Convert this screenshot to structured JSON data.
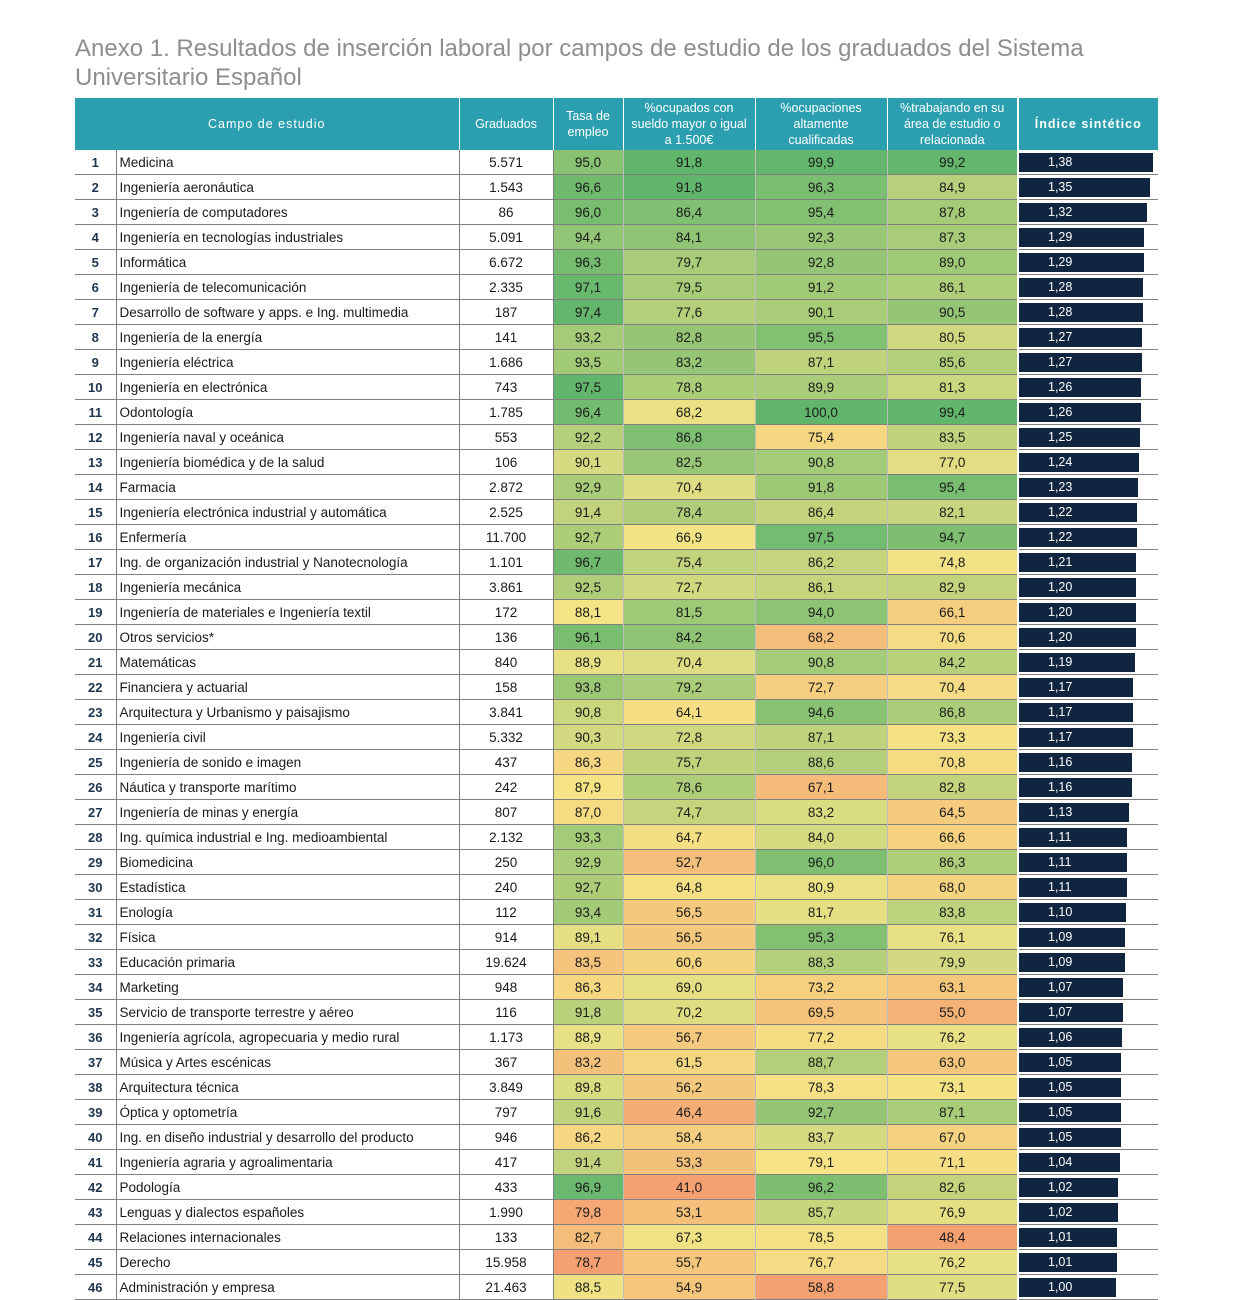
{
  "title": "Anexo 1. Resultados de inserción laboral por campos de estudio de los graduados del Sistema Universitario Español",
  "headers": {
    "campo": "Campo de estudio",
    "graduados": "Graduados",
    "tasa": "Tasa de empleo",
    "sueldo": "%ocupados con sueldo mayor o igual a 1.500€",
    "cualificadas": "%ocupaciones altamente cualificadas",
    "area": "%trabajando en su área de estudio o relacionada",
    "indice": "Índice sintético"
  },
  "scale": {
    "low": "#f4a070",
    "mid": "#f5e486",
    "high": "#62b66c",
    "index_bar": "#10253f"
  },
  "rows": [
    {
      "rank": "1",
      "campo": "Medicina",
      "graduados": "5.571",
      "tasa": "95,0",
      "sueldo": "91,8",
      "cualificadas": "99,9",
      "area": "99,2",
      "indice": "1,38"
    },
    {
      "rank": "2",
      "campo": "Ingeniería aeronáutica",
      "graduados": "1.543",
      "tasa": "96,6",
      "sueldo": "91,8",
      "cualificadas": "96,3",
      "area": "84,9",
      "indice": "1,35"
    },
    {
      "rank": "3",
      "campo": "Ingeniería de computadores",
      "graduados": "86",
      "tasa": "96,0",
      "sueldo": "86,4",
      "cualificadas": "95,4",
      "area": "87,8",
      "indice": "1,32"
    },
    {
      "rank": "4",
      "campo": "Ingeniería en tecnologías industriales",
      "graduados": "5.091",
      "tasa": "94,4",
      "sueldo": "84,1",
      "cualificadas": "92,3",
      "area": "87,3",
      "indice": "1,29"
    },
    {
      "rank": "5",
      "campo": "Informática",
      "graduados": "6.672",
      "tasa": "96,3",
      "sueldo": "79,7",
      "cualificadas": "92,8",
      "area": "89,0",
      "indice": "1,29"
    },
    {
      "rank": "6",
      "campo": "Ingeniería de telecomunicación",
      "graduados": "2.335",
      "tasa": "97,1",
      "sueldo": "79,5",
      "cualificadas": "91,2",
      "area": "86,1",
      "indice": "1,28"
    },
    {
      "rank": "7",
      "campo": "Desarrollo de software y apps. e Ing. multimedia",
      "graduados": "187",
      "tasa": "97,4",
      "sueldo": "77,6",
      "cualificadas": "90,1",
      "area": "90,5",
      "indice": "1,28"
    },
    {
      "rank": "8",
      "campo": "Ingeniería de la energía",
      "graduados": "141",
      "tasa": "93,2",
      "sueldo": "82,8",
      "cualificadas": "95,5",
      "area": "80,5",
      "indice": "1,27"
    },
    {
      "rank": "9",
      "campo": "Ingeniería eléctrica",
      "graduados": "1.686",
      "tasa": "93,5",
      "sueldo": "83,2",
      "cualificadas": "87,1",
      "area": "85,6",
      "indice": "1,27"
    },
    {
      "rank": "10",
      "campo": "Ingeniería en electrónica",
      "graduados": "743",
      "tasa": "97,5",
      "sueldo": "78,8",
      "cualificadas": "89,9",
      "area": "81,3",
      "indice": "1,26"
    },
    {
      "rank": "11",
      "campo": "Odontología",
      "graduados": "1.785",
      "tasa": "96,4",
      "sueldo": "68,2",
      "cualificadas": "100,0",
      "area": "99,4",
      "indice": "1,26"
    },
    {
      "rank": "12",
      "campo": "Ingeniería naval y oceánica",
      "graduados": "553",
      "tasa": "92,2",
      "sueldo": "86,8",
      "cualificadas": "75,4",
      "area": "83,5",
      "indice": "1,25"
    },
    {
      "rank": "13",
      "campo": "Ingeniería biomédica y de la salud",
      "graduados": "106",
      "tasa": "90,1",
      "sueldo": "82,5",
      "cualificadas": "90,8",
      "area": "77,0",
      "indice": "1,24"
    },
    {
      "rank": "14",
      "campo": "Farmacia",
      "graduados": "2.872",
      "tasa": "92,9",
      "sueldo": "70,4",
      "cualificadas": "91,8",
      "area": "95,4",
      "indice": "1,23"
    },
    {
      "rank": "15",
      "campo": "Ingeniería electrónica industrial y automática",
      "graduados": "2.525",
      "tasa": "91,4",
      "sueldo": "78,4",
      "cualificadas": "86,4",
      "area": "82,1",
      "indice": "1,22"
    },
    {
      "rank": "16",
      "campo": "Enfermería",
      "graduados": "11.700",
      "tasa": "92,7",
      "sueldo": "66,9",
      "cualificadas": "97,5",
      "area": "94,7",
      "indice": "1,22"
    },
    {
      "rank": "17",
      "campo": "Ing. de organización industrial y Nanotecnología",
      "graduados": "1.101",
      "tasa": "96,7",
      "sueldo": "75,4",
      "cualificadas": "86,2",
      "area": "74,8",
      "indice": "1,21"
    },
    {
      "rank": "18",
      "campo": "Ingeniería mecánica",
      "graduados": "3.861",
      "tasa": "92,5",
      "sueldo": "72,7",
      "cualificadas": "86,1",
      "area": "82,9",
      "indice": "1,20"
    },
    {
      "rank": "19",
      "campo": "Ingeniería de materiales e Ingeniería textil",
      "graduados": "172",
      "tasa": "88,1",
      "sueldo": "81,5",
      "cualificadas": "94,0",
      "area": "66,1",
      "indice": "1,20"
    },
    {
      "rank": "20",
      "campo": "Otros servicios*",
      "graduados": "136",
      "tasa": "96,1",
      "sueldo": "84,2",
      "cualificadas": "68,2",
      "area": "70,6",
      "indice": "1,20"
    },
    {
      "rank": "21",
      "campo": "Matemáticas",
      "graduados": "840",
      "tasa": "88,9",
      "sueldo": "70,4",
      "cualificadas": "90,8",
      "area": "84,2",
      "indice": "1,19"
    },
    {
      "rank": "22",
      "campo": "Financiera y actuarial",
      "graduados": "158",
      "tasa": "93,8",
      "sueldo": "79,2",
      "cualificadas": "72,7",
      "area": "70,4",
      "indice": "1,17"
    },
    {
      "rank": "23",
      "campo": "Arquitectura y Urbanismo y paisajismo",
      "graduados": "3.841",
      "tasa": "90,8",
      "sueldo": "64,1",
      "cualificadas": "94,6",
      "area": "86,8",
      "indice": "1,17"
    },
    {
      "rank": "24",
      "campo": "Ingeniería civil",
      "graduados": "5.332",
      "tasa": "90,3",
      "sueldo": "72,8",
      "cualificadas": "87,1",
      "area": "73,3",
      "indice": "1,17"
    },
    {
      "rank": "25",
      "campo": "Ingeniería de sonido e imagen",
      "graduados": "437",
      "tasa": "86,3",
      "sueldo": "75,7",
      "cualificadas": "88,6",
      "area": "70,8",
      "indice": "1,16"
    },
    {
      "rank": "26",
      "campo": "Náutica y transporte marítimo",
      "graduados": "242",
      "tasa": "87,9",
      "sueldo": "78,6",
      "cualificadas": "67,1",
      "area": "82,8",
      "indice": "1,16"
    },
    {
      "rank": "27",
      "campo": "Ingeniería de minas y energía",
      "graduados": "807",
      "tasa": "87,0",
      "sueldo": "74,7",
      "cualificadas": "83,2",
      "area": "64,5",
      "indice": "1,13"
    },
    {
      "rank": "28",
      "campo": "Ing. química industrial e Ing. medioambiental",
      "graduados": "2.132",
      "tasa": "93,3",
      "sueldo": "64,7",
      "cualificadas": "84,0",
      "area": "66,6",
      "indice": "1,11"
    },
    {
      "rank": "29",
      "campo": "Biomedicina",
      "graduados": "250",
      "tasa": "92,9",
      "sueldo": "52,7",
      "cualificadas": "96,0",
      "area": "86,3",
      "indice": "1,11"
    },
    {
      "rank": "30",
      "campo": "Estadística",
      "graduados": "240",
      "tasa": "92,7",
      "sueldo": "64,8",
      "cualificadas": "80,9",
      "area": "68,0",
      "indice": "1,11"
    },
    {
      "rank": "31",
      "campo": "Enología",
      "graduados": "112",
      "tasa": "93,4",
      "sueldo": "56,5",
      "cualificadas": "81,7",
      "area": "83,8",
      "indice": "1,10"
    },
    {
      "rank": "32",
      "campo": "Física",
      "graduados": "914",
      "tasa": "89,1",
      "sueldo": "56,5",
      "cualificadas": "95,3",
      "area": "76,1",
      "indice": "1,09"
    },
    {
      "rank": "33",
      "campo": "Educación primaria",
      "graduados": "19.624",
      "tasa": "83,5",
      "sueldo": "60,6",
      "cualificadas": "88,3",
      "area": "79,9",
      "indice": "1,09"
    },
    {
      "rank": "34",
      "campo": "Marketing",
      "graduados": "948",
      "tasa": "86,3",
      "sueldo": "69,0",
      "cualificadas": "73,2",
      "area": "63,1",
      "indice": "1,07"
    },
    {
      "rank": "35",
      "campo": "Servicio de transporte terrestre y aéreo",
      "graduados": "116",
      "tasa": "91,8",
      "sueldo": "70,2",
      "cualificadas": "69,5",
      "area": "55,0",
      "indice": "1,07"
    },
    {
      "rank": "36",
      "campo": "Ingeniería agrícola, agropecuaria y medio rural",
      "graduados": "1.173",
      "tasa": "88,9",
      "sueldo": "56,7",
      "cualificadas": "77,2",
      "area": "76,2",
      "indice": "1,06"
    },
    {
      "rank": "37",
      "campo": "Música y Artes escénicas",
      "graduados": "367",
      "tasa": "83,2",
      "sueldo": "61,5",
      "cualificadas": "88,7",
      "area": "63,0",
      "indice": "1,05"
    },
    {
      "rank": "38",
      "campo": "Arquitectura técnica",
      "graduados": "3.849",
      "tasa": "89,8",
      "sueldo": "56,2",
      "cualificadas": "78,3",
      "area": "73,1",
      "indice": "1,05"
    },
    {
      "rank": "39",
      "campo": "Óptica y optometría",
      "graduados": "797",
      "tasa": "91,6",
      "sueldo": "46,4",
      "cualificadas": "92,7",
      "area": "87,1",
      "indice": "1,05"
    },
    {
      "rank": "40",
      "campo": "Ing. en diseño industrial y desarrollo del producto",
      "graduados": "946",
      "tasa": "86,2",
      "sueldo": "58,4",
      "cualificadas": "83,7",
      "area": "67,0",
      "indice": "1,05"
    },
    {
      "rank": "41",
      "campo": "Ingeniería agraria y agroalimentaria",
      "graduados": "417",
      "tasa": "91,4",
      "sueldo": "53,3",
      "cualificadas": "79,1",
      "area": "71,1",
      "indice": "1,04"
    },
    {
      "rank": "42",
      "campo": "Podología",
      "graduados": "433",
      "tasa": "96,9",
      "sueldo": "41,0",
      "cualificadas": "96,2",
      "area": "82,6",
      "indice": "1,02"
    },
    {
      "rank": "43",
      "campo": "Lenguas y dialectos españoles",
      "graduados": "1.990",
      "tasa": "79,8",
      "sueldo": "53,1",
      "cualificadas": "85,7",
      "area": "76,9",
      "indice": "1,02"
    },
    {
      "rank": "44",
      "campo": "Relaciones internacionales",
      "graduados": "133",
      "tasa": "82,7",
      "sueldo": "67,3",
      "cualificadas": "78,5",
      "area": "48,4",
      "indice": "1,01"
    },
    {
      "rank": "45",
      "campo": "Derecho",
      "graduados": "15.958",
      "tasa": "78,7",
      "sueldo": "55,7",
      "cualificadas": "76,7",
      "area": "76,2",
      "indice": "1,01"
    },
    {
      "rank": "46",
      "campo": "Administración y empresa",
      "graduados": "21.463",
      "tasa": "88,5",
      "sueldo": "54,9",
      "cualificadas": "58,8",
      "area": "77,5",
      "indice": "1,00"
    }
  ]
}
